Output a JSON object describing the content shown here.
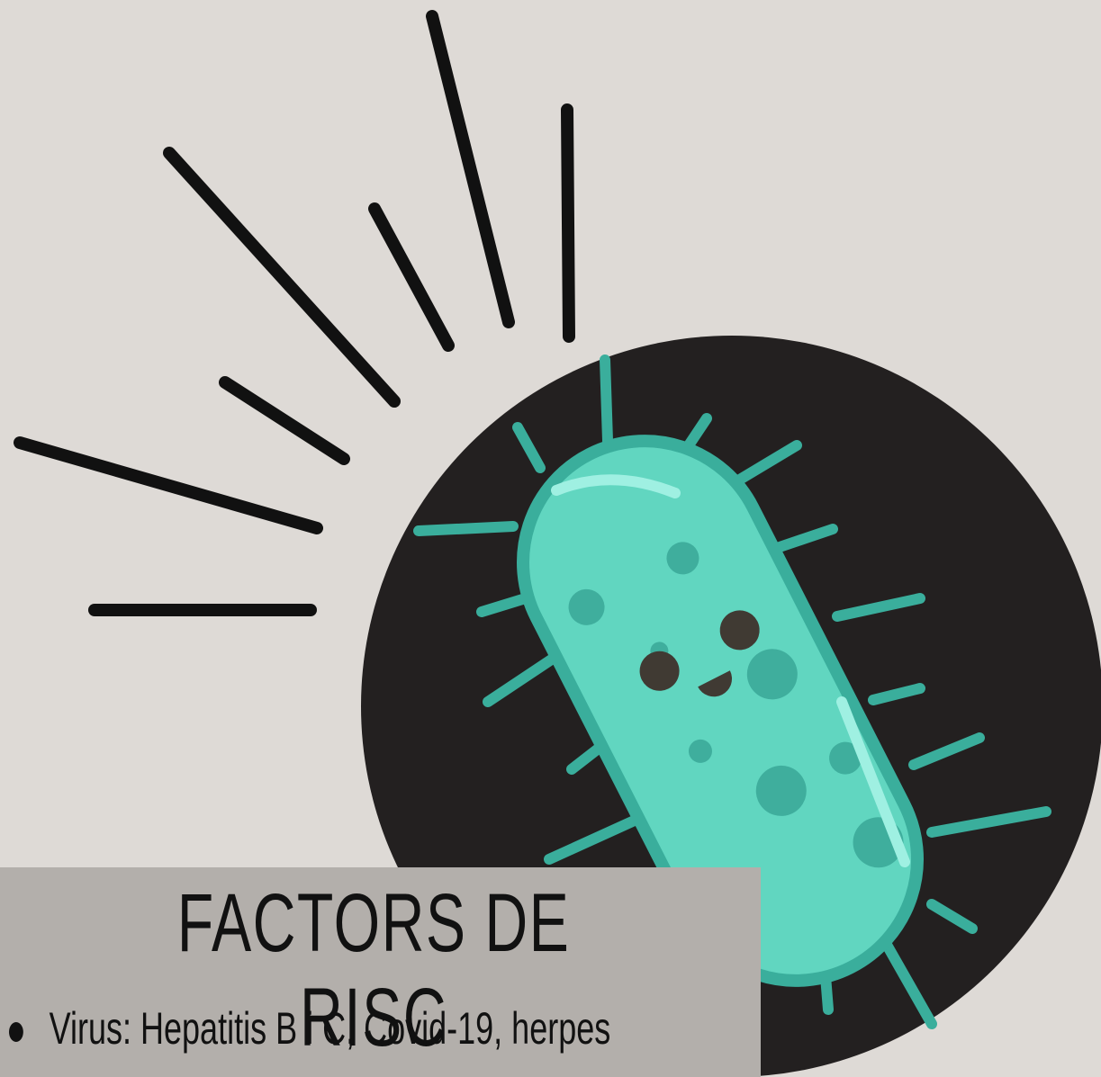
{
  "title": "FACTORS DE RISC",
  "bullets": [
    "Virus: Hepatitis B i C, Covid-19, herpes"
  ]
}
